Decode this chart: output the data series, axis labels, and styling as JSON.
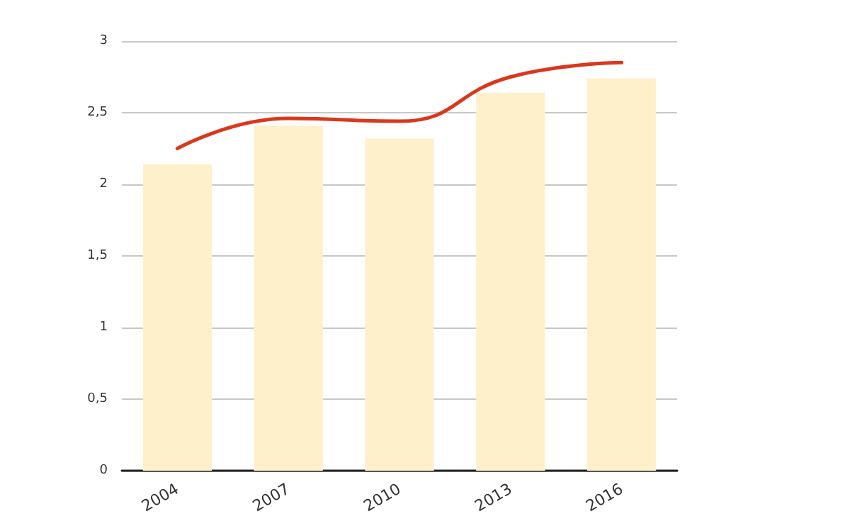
{
  "chart_data": {
    "type": "bar",
    "categories": [
      "2004",
      "2007",
      "2010",
      "2013",
      "2016"
    ],
    "series": [
      {
        "color": "#fff0cc",
        "values": [
          2.14,
          2.41,
          2.32,
          2.64,
          2.74
        ]
      },
      {
        "type": "line",
        "color": "#d9381e",
        "values": [
          2.25,
          2.46,
          2.44,
          2.75,
          2.85
        ]
      }
    ],
    "ylim": [
      0,
      3
    ],
    "yticks": [
      0,
      {
        "value": 0.5,
        "label": "0,5"
      },
      1,
      {
        "value": 1.5,
        "label": "1,5"
      },
      2,
      {
        "value": 2.5,
        "label": "2,5"
      },
      3
    ],
    "grid": "y",
    "marker": "none",
    "line_style": "solid"
  }
}
